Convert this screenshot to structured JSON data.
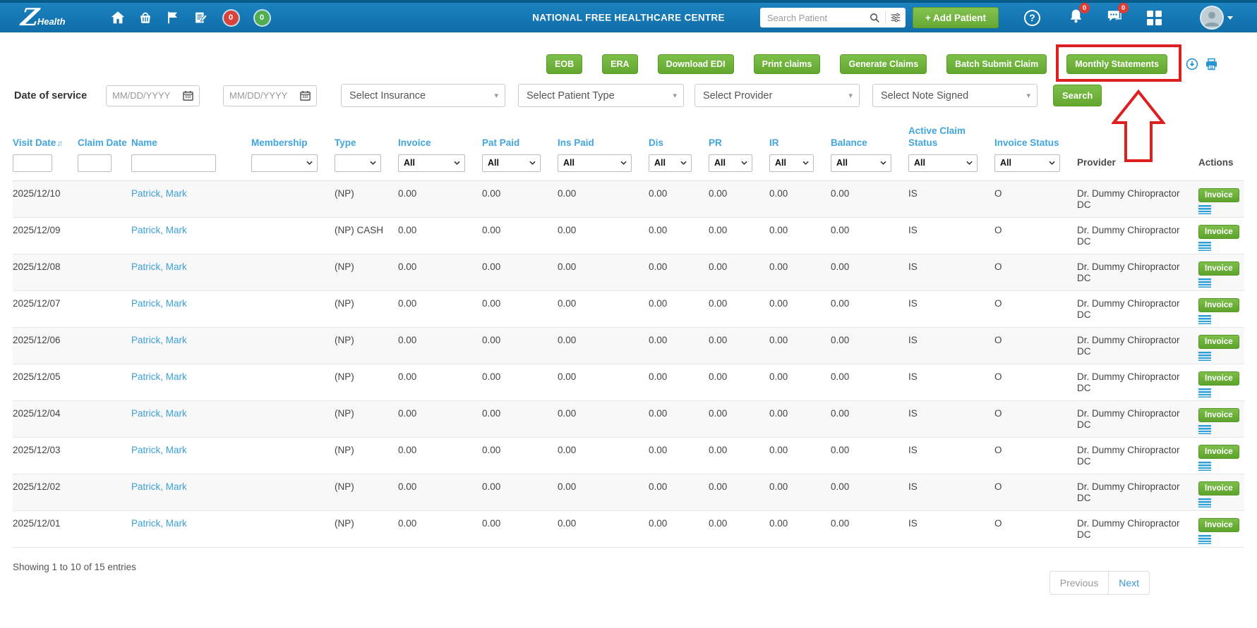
{
  "navbar": {
    "logo_z": "Z",
    "logo_text": "Health",
    "title": "NATIONAL FREE HEALTHCARE CENTRE",
    "cart_badge": "0",
    "tasks_badge": "0",
    "search_placeholder": "Search Patient",
    "add_patient_label": "+ Add Patient",
    "help_label": "?",
    "notifications_badge": "0",
    "messages_badge": "0"
  },
  "actions": {
    "buttons": [
      "EOB",
      "ERA",
      "Download EDI",
      "Print claims",
      "Generate Claims",
      "Batch Submit Claim",
      "Monthly Statements"
    ],
    "highlighted_button": "Monthly Statements"
  },
  "filters": {
    "date_of_service_label": "Date of service",
    "date_from_placeholder": "MM/DD/YYYY",
    "date_to_placeholder": "MM/DD/YYYY",
    "insurance_value": "Select Insurance",
    "patient_type_value": "Select Patient Type",
    "provider_value": "Select Provider",
    "note_signed_value": "Select Note Signed",
    "search_label": "Search"
  },
  "table": {
    "headers": [
      "Visit Date",
      "Claim Date",
      "Name",
      "Membership",
      "Type",
      "Invoice",
      "Pat Paid",
      "Ins Paid",
      "Dis",
      "PR",
      "IR",
      "Balance",
      "Active Claim Status",
      "Invoice Status",
      "Provider",
      "Actions"
    ],
    "sort_icon": "↓↑",
    "filter_all": "All",
    "column_filters": [
      {
        "name": "visit-date-filter",
        "kind": "input",
        "value": ""
      },
      {
        "name": "claim-date-filter",
        "kind": "input",
        "value": ""
      },
      {
        "name": "name-filter",
        "kind": "input",
        "value": ""
      },
      {
        "name": "membership-filter",
        "kind": "select",
        "value": ""
      },
      {
        "name": "type-filter",
        "kind": "select",
        "value": ""
      },
      {
        "name": "invoice-filter",
        "kind": "select",
        "value": "All"
      },
      {
        "name": "pat-paid-filter",
        "kind": "select",
        "value": "All"
      },
      {
        "name": "ins-paid-filter",
        "kind": "select",
        "value": "All"
      },
      {
        "name": "dis-filter",
        "kind": "select",
        "value": "All"
      },
      {
        "name": "pr-filter",
        "kind": "select",
        "value": "All"
      },
      {
        "name": "ir-filter",
        "kind": "select",
        "value": "All"
      },
      {
        "name": "balance-filter",
        "kind": "select",
        "value": "All"
      },
      {
        "name": "active-claim-status-filter",
        "kind": "select",
        "value": "All"
      },
      {
        "name": "invoice-status-filter",
        "kind": "select",
        "value": "All"
      }
    ],
    "action_label": "Invoice",
    "rows": [
      {
        "visit_date": "2025/12/10",
        "claim_date": "",
        "name": "Patrick, Mark",
        "membership": "",
        "type": "(NP)",
        "invoice": "0.00",
        "pat_paid": "0.00",
        "ins_paid": "0.00",
        "dis": "0.00",
        "pr": "0.00",
        "ir": "0.00",
        "balance": "0.00",
        "active_claim_status": "IS",
        "invoice_status": "O",
        "provider": "Dr. Dummy Chiropractor DC"
      },
      {
        "visit_date": "2025/12/09",
        "claim_date": "",
        "name": "Patrick, Mark",
        "membership": "",
        "type": "(NP) CASH",
        "invoice": "0.00",
        "pat_paid": "0.00",
        "ins_paid": "0.00",
        "dis": "0.00",
        "pr": "0.00",
        "ir": "0.00",
        "balance": "0.00",
        "active_claim_status": "IS",
        "invoice_status": "O",
        "provider": "Dr. Dummy Chiropractor DC"
      },
      {
        "visit_date": "2025/12/08",
        "claim_date": "",
        "name": "Patrick, Mark",
        "membership": "",
        "type": "(NP)",
        "invoice": "0.00",
        "pat_paid": "0.00",
        "ins_paid": "0.00",
        "dis": "0.00",
        "pr": "0.00",
        "ir": "0.00",
        "balance": "0.00",
        "active_claim_status": "IS",
        "invoice_status": "O",
        "provider": "Dr. Dummy Chiropractor DC"
      },
      {
        "visit_date": "2025/12/07",
        "claim_date": "",
        "name": "Patrick, Mark",
        "membership": "",
        "type": "(NP)",
        "invoice": "0.00",
        "pat_paid": "0.00",
        "ins_paid": "0.00",
        "dis": "0.00",
        "pr": "0.00",
        "ir": "0.00",
        "balance": "0.00",
        "active_claim_status": "IS",
        "invoice_status": "O",
        "provider": "Dr. Dummy Chiropractor DC"
      },
      {
        "visit_date": "2025/12/06",
        "claim_date": "",
        "name": "Patrick, Mark",
        "membership": "",
        "type": "(NP)",
        "invoice": "0.00",
        "pat_paid": "0.00",
        "ins_paid": "0.00",
        "dis": "0.00",
        "pr": "0.00",
        "ir": "0.00",
        "balance": "0.00",
        "active_claim_status": "IS",
        "invoice_status": "O",
        "provider": "Dr. Dummy Chiropractor DC"
      },
      {
        "visit_date": "2025/12/05",
        "claim_date": "",
        "name": "Patrick, Mark",
        "membership": "",
        "type": "(NP)",
        "invoice": "0.00",
        "pat_paid": "0.00",
        "ins_paid": "0.00",
        "dis": "0.00",
        "pr": "0.00",
        "ir": "0.00",
        "balance": "0.00",
        "active_claim_status": "IS",
        "invoice_status": "O",
        "provider": "Dr. Dummy Chiropractor DC"
      },
      {
        "visit_date": "2025/12/04",
        "claim_date": "",
        "name": "Patrick, Mark",
        "membership": "",
        "type": "(NP)",
        "invoice": "0.00",
        "pat_paid": "0.00",
        "ins_paid": "0.00",
        "dis": "0.00",
        "pr": "0.00",
        "ir": "0.00",
        "balance": "0.00",
        "active_claim_status": "IS",
        "invoice_status": "O",
        "provider": "Dr. Dummy Chiropractor DC"
      },
      {
        "visit_date": "2025/12/03",
        "claim_date": "",
        "name": "Patrick, Mark",
        "membership": "",
        "type": "(NP)",
        "invoice": "0.00",
        "pat_paid": "0.00",
        "ins_paid": "0.00",
        "dis": "0.00",
        "pr": "0.00",
        "ir": "0.00",
        "balance": "0.00",
        "active_claim_status": "IS",
        "invoice_status": "O",
        "provider": "Dr. Dummy Chiropractor DC"
      },
      {
        "visit_date": "2025/12/02",
        "claim_date": "",
        "name": "Patrick, Mark",
        "membership": "",
        "type": "(NP)",
        "invoice": "0.00",
        "pat_paid": "0.00",
        "ins_paid": "0.00",
        "dis": "0.00",
        "pr": "0.00",
        "ir": "0.00",
        "balance": "0.00",
        "active_claim_status": "IS",
        "invoice_status": "O",
        "provider": "Dr. Dummy Chiropractor DC"
      },
      {
        "visit_date": "2025/12/01",
        "claim_date": "",
        "name": "Patrick, Mark",
        "membership": "",
        "type": "(NP)",
        "invoice": "0.00",
        "pat_paid": "0.00",
        "ins_paid": "0.00",
        "dis": "0.00",
        "pr": "0.00",
        "ir": "0.00",
        "balance": "0.00",
        "active_claim_status": "IS",
        "invoice_status": "O",
        "provider": "Dr. Dummy Chiropractor DC"
      }
    ]
  },
  "footer": {
    "showing_text": "Showing 1 to 10 of 15 entries",
    "previous_label": "Previous",
    "next_label": "Next"
  },
  "colors": {
    "navbar_blue": "#1577b5",
    "button_green": "#6fae3b",
    "header_link_blue": "#41a6de",
    "annotation_red": "#de1f1f",
    "badge_red": "#d9433e",
    "badge_green": "#4fae4f",
    "icon_blue": "#2795d2"
  }
}
